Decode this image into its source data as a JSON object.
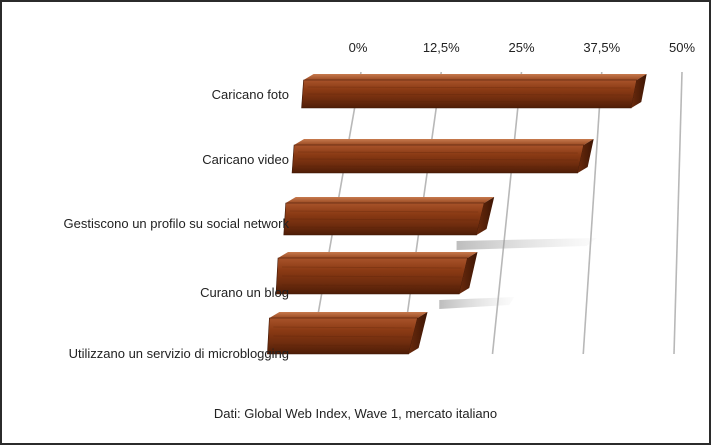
{
  "chart_data": {
    "type": "bar",
    "orientation": "horizontal",
    "style": "3d-wood-bars",
    "categories": [
      "Caricano foto",
      "Caricano video",
      "Gestiscono un profilo su social network",
      "Curano un blog",
      "Utilizzano un servizio di microblogging"
    ],
    "values": [
      43,
      35.5,
      21.5,
      20,
      14
    ],
    "xlim": [
      0,
      50
    ],
    "xticks": [
      "0%",
      "12,5%",
      "25%",
      "37,5%",
      "50%"
    ],
    "xtick_values": [
      0,
      12.5,
      25,
      37.5,
      50
    ],
    "xaxis_position": "top",
    "grid": true,
    "colors": {
      "bar_face": "#8a3a14",
      "bar_dark": "#5a230a",
      "bar_light": "#b5643a",
      "grid": "#b8b8b8"
    }
  },
  "footer": {
    "source_note": "Dati: Global Web Index, Wave 1, mercato italiano"
  }
}
